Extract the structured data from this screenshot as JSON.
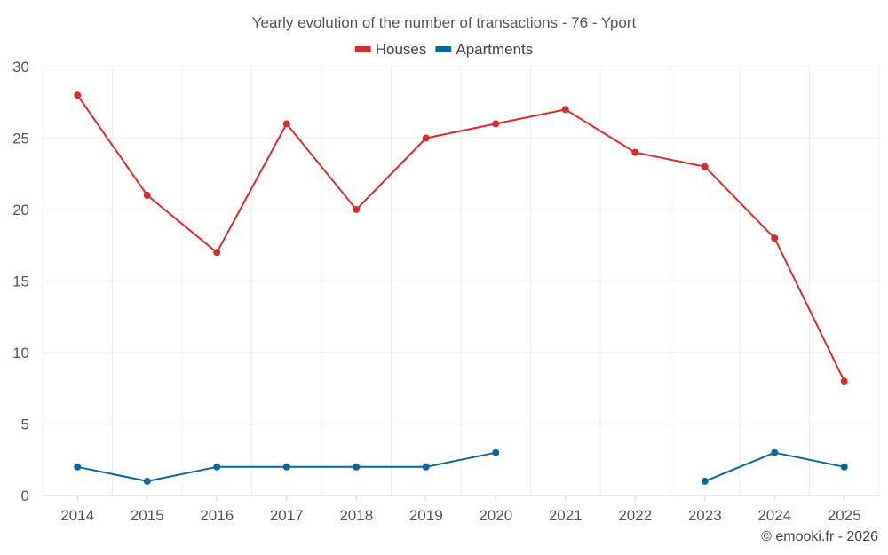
{
  "chart_data": {
    "type": "line",
    "title": "Yearly evolution of the number of transactions - 76 - Yport",
    "xlabel": "",
    "ylabel": "",
    "categories": [
      "2014",
      "2015",
      "2016",
      "2017",
      "2018",
      "2019",
      "2020",
      "2021",
      "2022",
      "2023",
      "2024",
      "2025"
    ],
    "ylim": [
      0,
      30
    ],
    "yticks": [
      0,
      5,
      10,
      15,
      20,
      25,
      30
    ],
    "grid": true,
    "legend_position": "top-center",
    "series": [
      {
        "name": "Houses",
        "color": "#d32f2f",
        "values": [
          28,
          21,
          17,
          26,
          20,
          25,
          26,
          27,
          24,
          23,
          18,
          8
        ]
      },
      {
        "name": "Apartments",
        "color": "#0d6699",
        "values": [
          2,
          1,
          2,
          2,
          2,
          2,
          3,
          null,
          null,
          1,
          3,
          2
        ]
      }
    ]
  },
  "credit": "© emooki.fr - 2026"
}
